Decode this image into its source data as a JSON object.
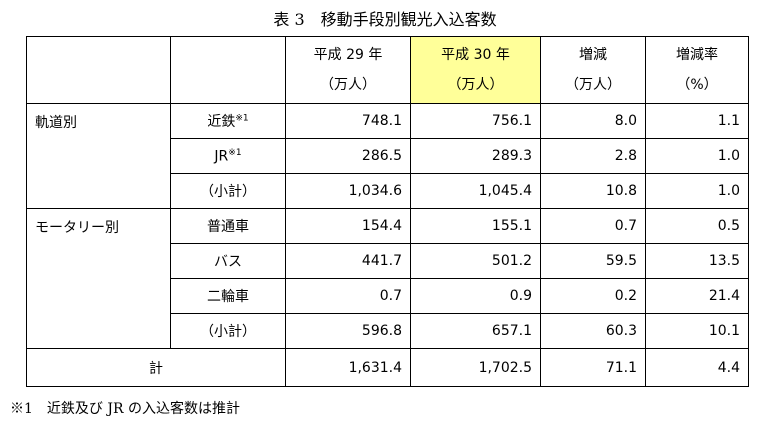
{
  "title": "表 3　移動手段別観光入込客数",
  "table": {
    "header": [
      [
        "平成 29 年",
        "（万人）"
      ],
      [
        "平成 30 年",
        "（万人）"
      ],
      [
        "増減",
        "（万人）"
      ],
      [
        "増減率",
        "（%）"
      ]
    ],
    "groups": [
      {
        "label": "軌道別",
        "rows": [
          {
            "label": "近鉄",
            "note": "※1",
            "values": [
              "748.1",
              "756.1",
              "8.0",
              "1.1"
            ]
          },
          {
            "label": "JR",
            "note": "※1",
            "values": [
              "286.5",
              "289.3",
              "2.8",
              "1.0"
            ]
          },
          {
            "label": "（小計）",
            "values": [
              "1,034.6",
              "1,045.4",
              "10.8",
              "1.0"
            ]
          }
        ]
      },
      {
        "label": "モータリー別",
        "rows": [
          {
            "label": "普通車",
            "values": [
              "154.4",
              "155.1",
              "0.7",
              "0.5"
            ]
          },
          {
            "label": "バス",
            "values": [
              "441.7",
              "501.2",
              "59.5",
              "13.5"
            ]
          },
          {
            "label": "二輪車",
            "values": [
              "0.7",
              "0.9",
              "0.2",
              "21.4"
            ]
          },
          {
            "label": "（小計）",
            "values": [
              "596.8",
              "657.1",
              "60.3",
              "10.1"
            ]
          }
        ]
      }
    ],
    "total": {
      "label": "計",
      "values": [
        "1,631.4",
        "1,702.5",
        "71.1",
        "4.4"
      ]
    }
  },
  "footnote": "※1　近鉄及び JR の入込客数は推計"
}
